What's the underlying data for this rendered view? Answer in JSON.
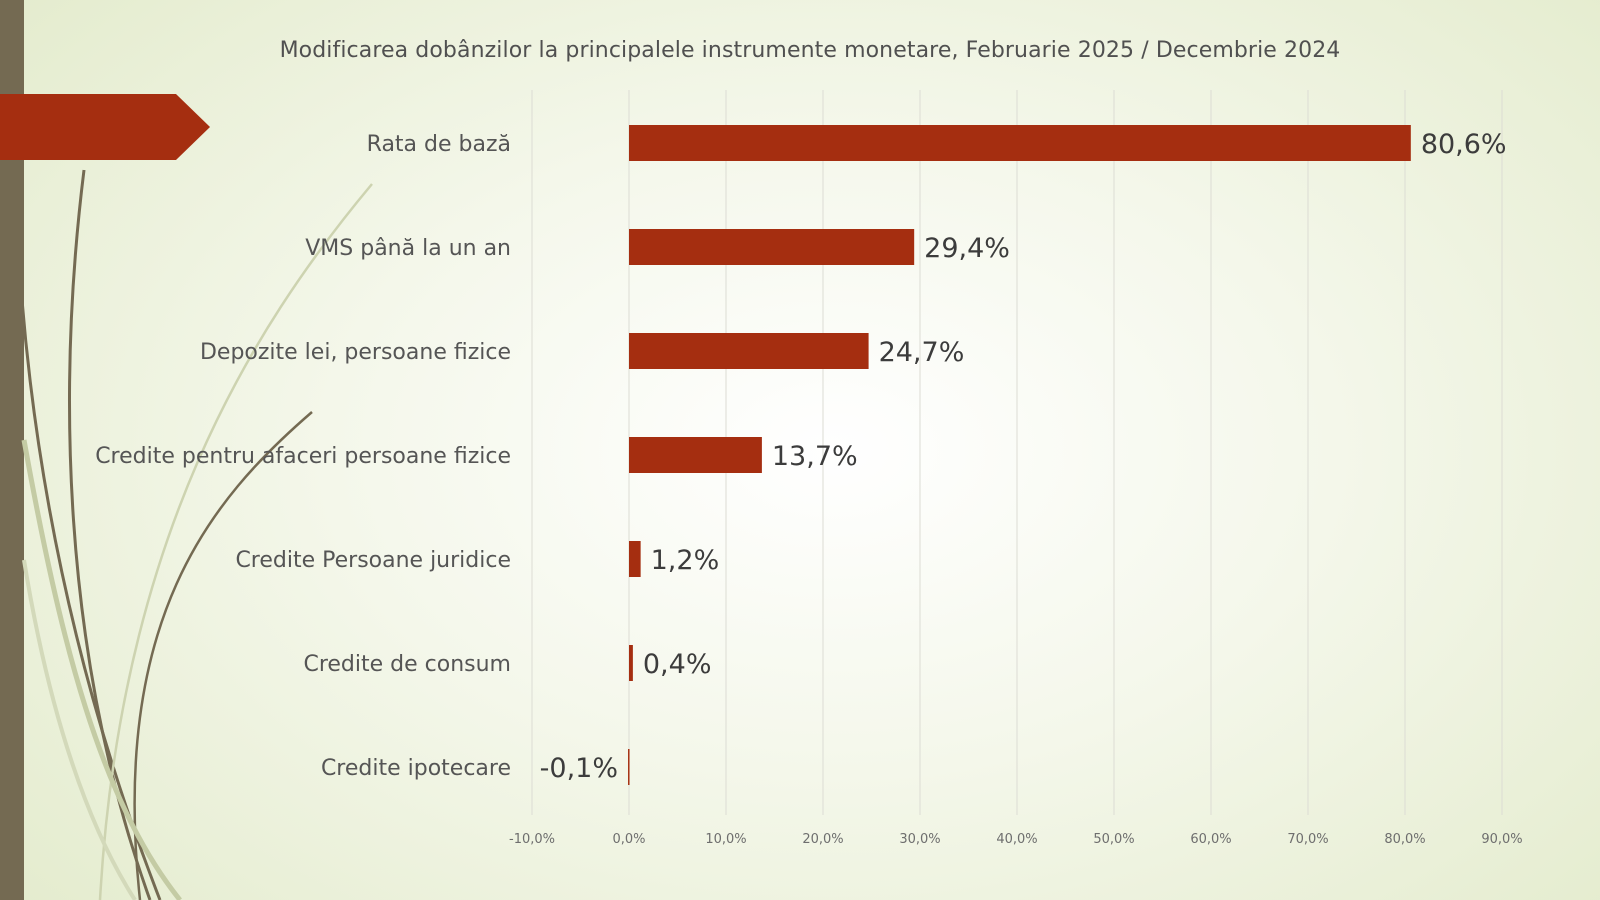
{
  "chart_data": {
    "type": "bar",
    "orientation": "horizontal",
    "title": "Modificarea dobânzilor la principalele instrumente monetare, Februarie 2025 / Decembrie 2024",
    "categories": [
      "Rata de bază",
      "VMS până la un an",
      "Depozite lei, persoane fizice",
      "Credite pentru afaceri persoane fizice",
      "Credite Persoane juridice",
      "Credite de consum",
      "Credite ipotecare"
    ],
    "values": [
      80.6,
      29.4,
      24.7,
      13.7,
      1.2,
      0.4,
      -0.1
    ],
    "value_labels": [
      "80,6%",
      "29,4%",
      "24,7%",
      "13,7%",
      "1,2%",
      "0,4%",
      "-0,1%"
    ],
    "xlim": [
      -10,
      90
    ],
    "x_ticks": [
      -10,
      0,
      10,
      20,
      30,
      40,
      50,
      60,
      70,
      80,
      90
    ],
    "x_tick_labels": [
      "-10,0%",
      "0,0%",
      "10,0%",
      "20,0%",
      "30,0%",
      "40,0%",
      "50,0%",
      "60,0%",
      "70,0%",
      "80,0%",
      "90,0%"
    ],
    "xlabel": "",
    "ylabel": "",
    "grid": "vertical",
    "legend": "none",
    "bar_color": "#a52e10"
  },
  "theme": {
    "accent_tab_color": "#a52e10",
    "side_bar_color": "#746a52"
  }
}
